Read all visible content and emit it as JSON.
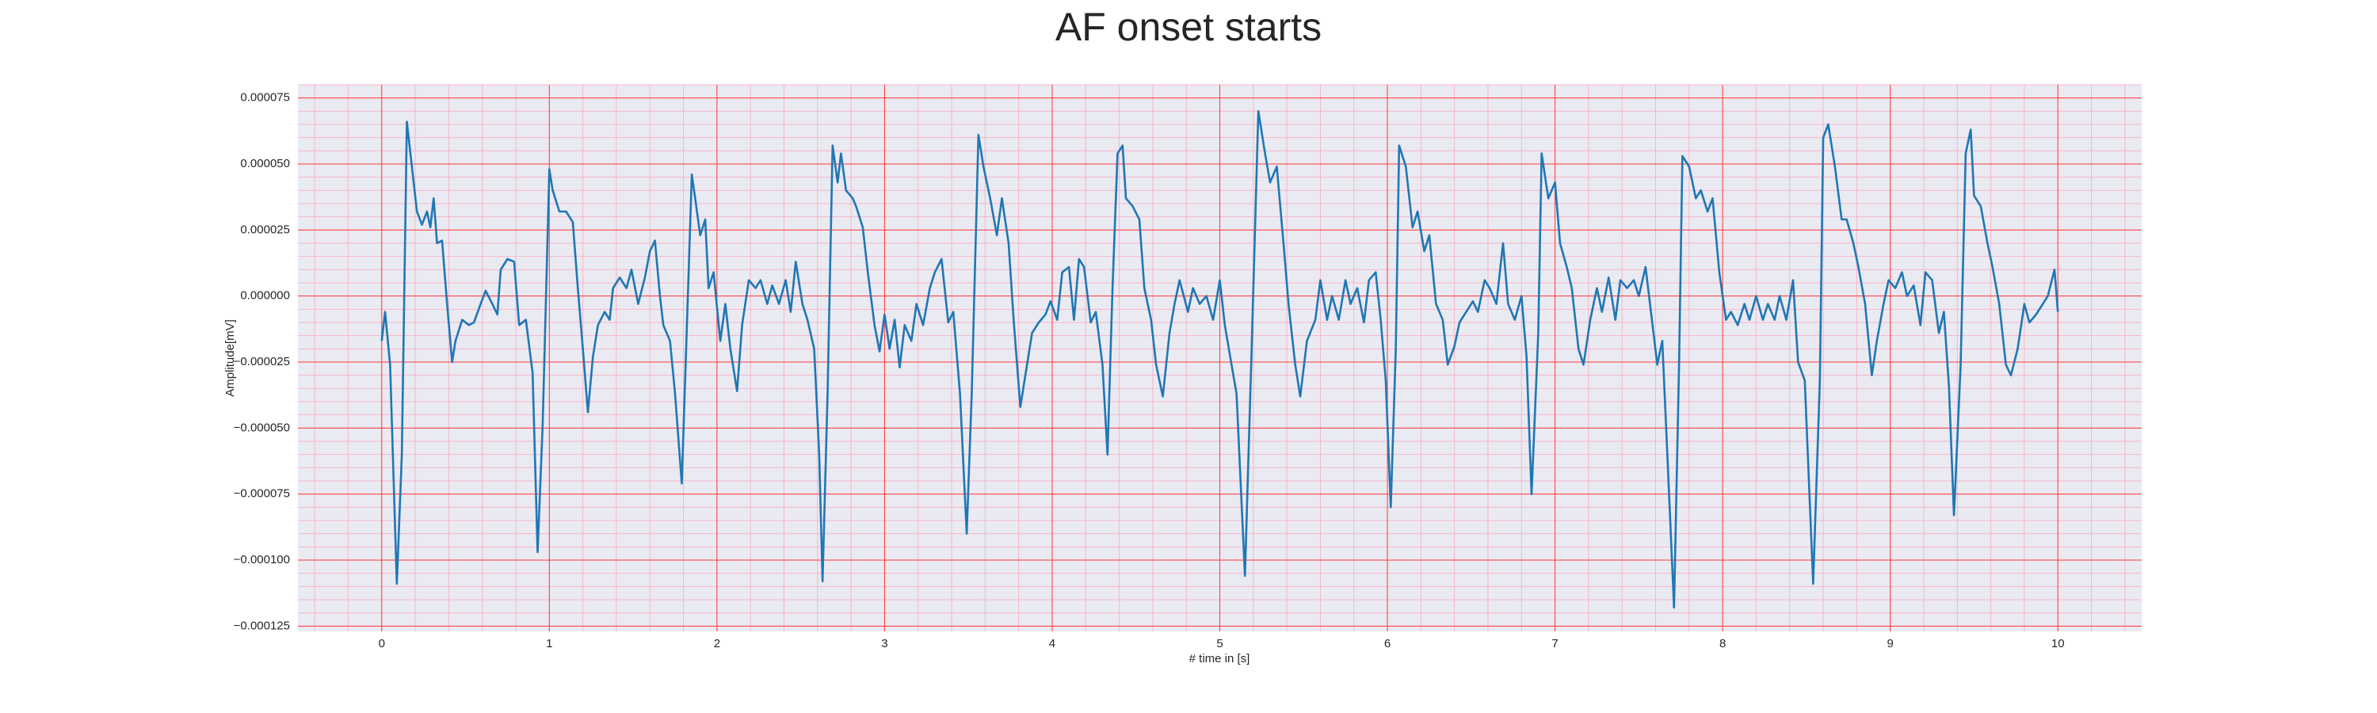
{
  "chart_data": {
    "type": "line",
    "title": "AF onset starts",
    "xlabel": "# time in [s]",
    "ylabel": "Amplitude[mV]",
    "color": "#1f77b4",
    "background": "#eaeaf2",
    "grid": true,
    "grid_color": "#ff3b3b",
    "minor_grid": true,
    "minor_grid_color": "#f5b6c8",
    "minor_grid_divisions": 5,
    "xlim": [
      -0.5,
      10.5
    ],
    "xticks": [
      0,
      1,
      2,
      3,
      4,
      5,
      6,
      7,
      8,
      9,
      10
    ],
    "ylim": [
      -0.000127,
      8e-05
    ],
    "yticks": [
      {
        "value": -0.000125,
        "label": "−0.000125"
      },
      {
        "value": -0.0001,
        "label": "−0.000100"
      },
      {
        "value": -7.5e-05,
        "label": "−0.000075"
      },
      {
        "value": -5e-05,
        "label": "−0.000050"
      },
      {
        "value": -2.5e-05,
        "label": "−0.000025"
      },
      {
        "value": 0,
        "label": "0.000000"
      },
      2.5e-05,
      {
        "value": 5e-05,
        "label": "0.000050"
      },
      7.5e-05
    ],
    "x": [
      0,
      0.02,
      0.05,
      0.09,
      0.12,
      0.15,
      0.18,
      0.21,
      0.24,
      0.27,
      0.29,
      0.31,
      0.33,
      0.36,
      0.39,
      0.42,
      0.44,
      0.48,
      0.52,
      0.55,
      0.59,
      0.62,
      0.66,
      0.69,
      0.71,
      0.75,
      0.79,
      0.82,
      0.86,
      0.9,
      0.93,
      0.96,
      1.0,
      1.02,
      1.06,
      1.1,
      1.14,
      1.17,
      1.2,
      1.23,
      1.26,
      1.29,
      1.33,
      1.36,
      1.38,
      1.42,
      1.46,
      1.49,
      1.53,
      1.57,
      1.6,
      1.63,
      1.66,
      1.68,
      1.72,
      1.75,
      1.79,
      1.81,
      1.85,
      1.87,
      1.9,
      1.93,
      1.95,
      1.98,
      2.02,
      2.05,
      2.08,
      2.12,
      2.15,
      2.19,
      2.23,
      2.26,
      2.3,
      2.33,
      2.37,
      2.41,
      2.44,
      2.47,
      2.51,
      2.54,
      2.58,
      2.61,
      2.63,
      2.66,
      2.69,
      2.72,
      2.74,
      2.77,
      2.81,
      2.83,
      2.87,
      2.9,
      2.94,
      2.97,
      3.0,
      3.03,
      3.06,
      3.09,
      3.12,
      3.16,
      3.19,
      3.23,
      3.27,
      3.3,
      3.34,
      3.38,
      3.41,
      3.45,
      3.49,
      3.52,
      3.56,
      3.59,
      3.63,
      3.67,
      3.7,
      3.74,
      3.77,
      3.81,
      3.85,
      3.88,
      3.92,
      3.96,
      3.99,
      4.03,
      4.06,
      4.1,
      4.13,
      4.16,
      4.19,
      4.23,
      4.26,
      4.3,
      4.33,
      4.36,
      4.39,
      4.42,
      4.44,
      4.48,
      4.52,
      4.55,
      4.59,
      4.62,
      4.66,
      4.7,
      4.73,
      4.76,
      4.81,
      4.84,
      4.88,
      4.92,
      4.96,
      5.0,
      5.03,
      5.07,
      5.1,
      5.15,
      5.19,
      5.23,
      5.27,
      5.3,
      5.34,
      5.38,
      5.41,
      5.45,
      5.48,
      5.52,
      5.57,
      5.6,
      5.64,
      5.67,
      5.71,
      5.75,
      5.78,
      5.82,
      5.86,
      5.89,
      5.93,
      5.96,
      5.99,
      6.02,
      6.05,
      6.07,
      6.11,
      6.15,
      6.18,
      6.22,
      6.25,
      6.29,
      6.33,
      6.36,
      6.4,
      6.43,
      6.47,
      6.51,
      6.54,
      6.58,
      6.61,
      6.65,
      6.69,
      6.72,
      6.76,
      6.8,
      6.83,
      6.86,
      6.9,
      6.92,
      6.96,
      7.0,
      7.03,
      7.07,
      7.1,
      7.14,
      7.17,
      7.21,
      7.25,
      7.28,
      7.32,
      7.36,
      7.39,
      7.43,
      7.47,
      7.5,
      7.54,
      7.58,
      7.61,
      7.64,
      7.67,
      7.71,
      7.74,
      7.76,
      7.8,
      7.84,
      7.87,
      7.91,
      7.94,
      7.98,
      8.02,
      8.05,
      8.09,
      8.13,
      8.16,
      8.2,
      8.24,
      8.27,
      8.31,
      8.34,
      8.38,
      8.42,
      8.45,
      8.49,
      8.54,
      8.58,
      8.6,
      8.63,
      8.67,
      8.71,
      8.74,
      8.78,
      8.81,
      8.85,
      8.89,
      8.92,
      8.96,
      8.99,
      9.03,
      9.07,
      9.1,
      9.14,
      9.18,
      9.21,
      9.25,
      9.29,
      9.32,
      9.35,
      9.38,
      9.42,
      9.45,
      9.48,
      9.5,
      9.54,
      9.58,
      9.61,
      9.65,
      9.69,
      9.72,
      9.76,
      9.8,
      9.83,
      9.87,
      9.91,
      9.94,
      9.98,
      10.0
    ],
    "values": [
      -1.7e-05,
      -6e-06,
      -2.6e-05,
      -0.000109,
      -6e-05,
      6.6e-05,
      4.9e-05,
      3.2e-05,
      2.7e-05,
      3.2e-05,
      2.6e-05,
      3.7e-05,
      2e-05,
      2.1e-05,
      -3e-06,
      -2.5e-05,
      -1.7e-05,
      -9e-06,
      -1.1e-05,
      -1e-05,
      -3e-06,
      2e-06,
      -3e-06,
      -7e-06,
      1e-05,
      1.4e-05,
      1.3e-05,
      -1.1e-05,
      -9e-06,
      -2.9e-05,
      -9.7e-05,
      -4.9e-05,
      4.8e-05,
      4e-05,
      3.2e-05,
      3.2e-05,
      2.8e-05,
      3e-06,
      -2e-05,
      -4.4e-05,
      -2.3e-05,
      -1.1e-05,
      -6e-06,
      -9e-06,
      3e-06,
      7e-06,
      3e-06,
      1e-05,
      -3e-06,
      7e-06,
      1.7e-05,
      2.1e-05,
      0,
      -1.1e-05,
      -1.7e-05,
      -3.7e-05,
      -7.1e-05,
      -3.2e-05,
      4.6e-05,
      3.7e-05,
      2.3e-05,
      2.9e-05,
      3e-06,
      9e-06,
      -1.7e-05,
      -3e-06,
      -2e-05,
      -3.6e-05,
      -1.1e-05,
      6e-06,
      3e-06,
      6e-06,
      -3e-06,
      4e-06,
      -3e-06,
      6e-06,
      -6e-06,
      1.3e-05,
      -3e-06,
      -9e-06,
      -2e-05,
      -6e-05,
      -0.000108,
      -3.7e-05,
      5.7e-05,
      4.3e-05,
      5.4e-05,
      4e-05,
      3.7e-05,
      3.4e-05,
      2.6e-05,
      9e-06,
      -1.1e-05,
      -2.1e-05,
      -7e-06,
      -2e-05,
      -9e-06,
      -2.7e-05,
      -1.1e-05,
      -1.7e-05,
      -3e-06,
      -1.1e-05,
      3e-06,
      9e-06,
      1.4e-05,
      -1e-05,
      -6e-06,
      -3.7e-05,
      -9e-05,
      -3.7e-05,
      6.1e-05,
      4.9e-05,
      3.7e-05,
      2.3e-05,
      3.7e-05,
      2e-05,
      -9e-06,
      -4.2e-05,
      -2.6e-05,
      -1.4e-05,
      -1e-05,
      -7e-06,
      -2e-06,
      -9e-06,
      9e-06,
      1.1e-05,
      -9e-06,
      1.4e-05,
      1.1e-05,
      -1e-05,
      -6e-06,
      -2.6e-05,
      -6e-05,
      3e-06,
      5.4e-05,
      5.7e-05,
      3.7e-05,
      3.4e-05,
      2.9e-05,
      3e-06,
      -9e-06,
      -2.6e-05,
      -3.8e-05,
      -1.4e-05,
      -3e-06,
      6e-06,
      -6e-06,
      3e-06,
      -3e-06,
      0,
      -9e-06,
      6e-06,
      -1.1e-05,
      -2.6e-05,
      -3.7e-05,
      -0.000106,
      -2e-05,
      7e-05,
      5.4e-05,
      4.3e-05,
      4.9e-05,
      2e-05,
      -3e-06,
      -2.6e-05,
      -3.8e-05,
      -1.7e-05,
      -9e-06,
      6e-06,
      -9e-06,
      0,
      -9e-06,
      6e-06,
      -3e-06,
      3e-06,
      -1e-05,
      6e-06,
      9e-06,
      -9e-06,
      -3.2e-05,
      -8e-05,
      -2e-05,
      5.7e-05,
      4.9e-05,
      2.6e-05,
      3.2e-05,
      1.7e-05,
      2.3e-05,
      -3e-06,
      -9e-06,
      -2.6e-05,
      -1.9e-05,
      -1e-05,
      -6e-06,
      -2e-06,
      -6e-06,
      6e-06,
      3e-06,
      -3e-06,
      2e-05,
      -3e-06,
      -9e-06,
      0,
      -2.3e-05,
      -7.5e-05,
      -1.4e-05,
      5.4e-05,
      3.7e-05,
      4.3e-05,
      2e-05,
      1.1e-05,
      3e-06,
      -2e-05,
      -2.6e-05,
      -9e-06,
      3e-06,
      -6e-06,
      7e-06,
      -9e-06,
      6e-06,
      3e-06,
      6e-06,
      0,
      1.1e-05,
      -1e-05,
      -2.6e-05,
      -1.7e-05,
      -6e-05,
      -0.000118,
      -2.6e-05,
      5.3e-05,
      4.9e-05,
      3.7e-05,
      4e-05,
      3.2e-05,
      3.7e-05,
      9e-06,
      -9e-06,
      -6e-06,
      -1.1e-05,
      -3e-06,
      -9e-06,
      0,
      -9e-06,
      -3e-06,
      -9e-06,
      0,
      -9e-06,
      6e-06,
      -2.5e-05,
      -3.2e-05,
      -0.000109,
      -3.2e-05,
      6e-05,
      6.5e-05,
      4.9e-05,
      2.9e-05,
      2.9e-05,
      2e-05,
      1.1e-05,
      -3e-06,
      -3e-05,
      -1.7e-05,
      -3e-06,
      6e-06,
      3e-06,
      9e-06,
      0,
      4e-06,
      -1.1e-05,
      9e-06,
      6e-06,
      -1.4e-05,
      -6e-06,
      -3.4e-05,
      -8.3e-05,
      -2.6e-05,
      5.4e-05,
      6.3e-05,
      3.8e-05,
      3.4e-05,
      2e-05,
      1.1e-05,
      -3e-06,
      -2.6e-05,
      -3e-05,
      -2e-05,
      -3e-06,
      -1e-05,
      -7e-06,
      -3e-06,
      0,
      1e-05,
      -6e-06
    ]
  }
}
